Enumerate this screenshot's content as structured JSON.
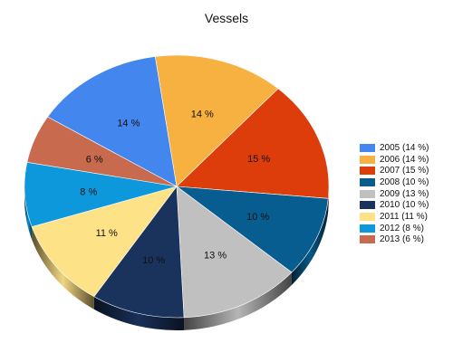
{
  "chart_data": {
    "type": "pie",
    "title": "Vessels",
    "categories": [
      "2005",
      "2006",
      "2007",
      "2008",
      "2009",
      "2010",
      "2011",
      "2012",
      "2013"
    ],
    "values": [
      14,
      14,
      15,
      10,
      13,
      10,
      11,
      8,
      6
    ],
    "data_labels": [
      "14 %",
      "14 %",
      "15 %",
      "10 %",
      "13 %",
      "10 %",
      "11 %",
      "8 %",
      "6 %"
    ],
    "legend_entries": [
      "2005 (14 %)",
      "2006 (14 %)",
      "2007 (15 %)",
      "2008 (10 %)",
      "2009 (13 %)",
      "2010 (10 %)",
      "2011 (11 %)",
      "2012 (8 %)",
      "2013 (6 %)"
    ],
    "colors": [
      "#4286ee",
      "#f7b140",
      "#dc3d0b",
      "#075d8f",
      "#c0c0c0",
      "#1a335d",
      "#fee287",
      "#0e98dc",
      "#c76a4e"
    ],
    "legend_position": "right",
    "style": "3d-tilted"
  }
}
